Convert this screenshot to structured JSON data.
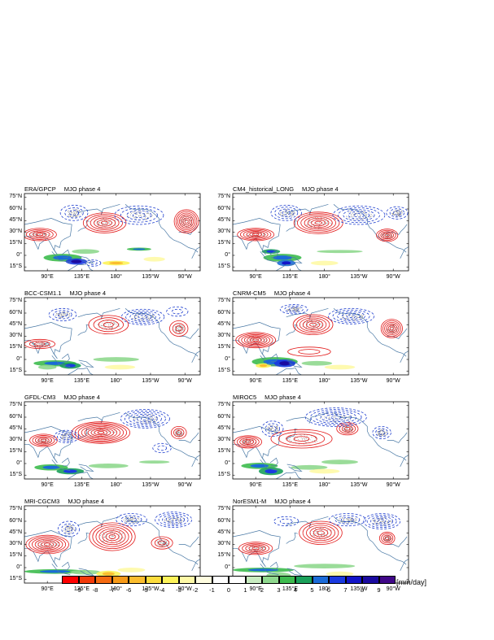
{
  "phase_label": "MJO phase 4",
  "panels": [
    {
      "model": "ERA/GPCP"
    },
    {
      "model": "CM4_historical_LONG"
    },
    {
      "model": "BCC-CSM1.1"
    },
    {
      "model": "CNRM-CM5"
    },
    {
      "model": "GFDL-CM3"
    },
    {
      "model": "MIROC5"
    },
    {
      "model": "MRI-CGCM3"
    },
    {
      "model": "NorESM1-M"
    }
  ],
  "lat_labels": [
    "75°N",
    "60°N",
    "45°N",
    "30°N",
    "15°N",
    "0°",
    "15°S"
  ],
  "lon_labels": [
    "90°E",
    "135°E",
    "180°",
    "135°W",
    "90°W"
  ],
  "colorbar": {
    "labels": [
      "-9",
      "-8",
      "-7",
      "-6",
      "-5",
      "-4",
      "-3",
      "-2",
      "-1",
      "0",
      "1",
      "2",
      "3",
      "4",
      "5",
      "6",
      "7",
      "8",
      "9"
    ],
    "colors": [
      "#ff0000",
      "#f33a0a",
      "#f56a10",
      "#f79a18",
      "#fbbd2e",
      "#fcdc3c",
      "#fdf35a",
      "#fef9a6",
      "#fffde0",
      "#ffffff",
      "#ffffff",
      "#c8ecc0",
      "#8fd88e",
      "#3dbb4e",
      "#1aa05a",
      "#1b6bd8",
      "#1a3ae0",
      "#1214c8",
      "#1a0aa0",
      "#400888"
    ],
    "unit": "[mm/day]"
  },
  "style": {
    "positive_contour": "#e21616",
    "negative_contour": "#1f3fce",
    "coast": "#4a79a5",
    "stipple": "#8c8c8c"
  }
}
